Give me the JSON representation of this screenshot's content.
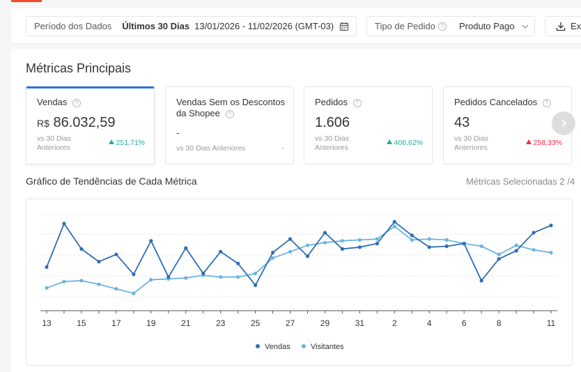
{
  "filter": {
    "period_label": "Período dos Dados",
    "period_range": "Últimos 30 Dias",
    "period_dates": "13/01/2026 - 11/02/2026 (GMT-03)",
    "order_type_label": "Tipo de Pedido",
    "order_type_value": "Produto Pago",
    "export_label": "Exp"
  },
  "metrics_section": {
    "title": "Métricas Principais",
    "cards": [
      {
        "name": "Vendas",
        "currency": "R$",
        "value": "86.032,59",
        "compare": "vs 30 Dias Anteriores",
        "change": "251,71%",
        "direction": "up",
        "color": "#26aa99"
      },
      {
        "name": "Vendas Sem os Descontos da Shopee",
        "value": "-",
        "compare": "vs 30 Dias Anteriores",
        "change": "-"
      },
      {
        "name": "Pedidos",
        "value": "1.606",
        "compare": "vs 30 Dias Anteriores",
        "change": "406,62%",
        "direction": "up",
        "color": "#26aa99"
      },
      {
        "name": "Pedidos Cancelados",
        "value": "43",
        "compare": "vs 30 Dias Anteriores",
        "change": "258,33%",
        "direction": "up",
        "color": "#ee2c4a"
      }
    ]
  },
  "trend": {
    "title": "Gráfico de Tendências de Cada Métrica",
    "selected": "Métricas Selecionadas 2 /4"
  },
  "chart_data": {
    "type": "line",
    "x": [
      "13",
      "14",
      "15",
      "16",
      "17",
      "18",
      "19",
      "20",
      "21",
      "22",
      "23",
      "24",
      "25",
      "26",
      "27",
      "28",
      "29",
      "30",
      "31",
      "1",
      "2",
      "3",
      "4",
      "5",
      "6",
      "7",
      "8",
      "9",
      "10",
      "11"
    ],
    "tick_labels": [
      "13",
      "15",
      "17",
      "19",
      "21",
      "23",
      "25",
      "27",
      "29",
      "31",
      "2",
      "4",
      "6",
      "8",
      "11"
    ],
    "ylim": [
      0,
      100
    ],
    "grid": true,
    "legend": "bottom",
    "series": [
      {
        "name": "Vendas",
        "color": "#2d6db5",
        "values": [
          42,
          90,
          62,
          48,
          56,
          34,
          71,
          31,
          63,
          35,
          59,
          46,
          22,
          58,
          73,
          54,
          80,
          62,
          64,
          68,
          92,
          77,
          64,
          65,
          68,
          27,
          51,
          60,
          80,
          88
        ]
      },
      {
        "name": "Visitantes",
        "color": "#6ab4e0",
        "values": [
          19,
          26,
          27,
          23,
          18,
          13,
          28,
          29,
          30,
          33,
          31,
          31,
          35,
          52,
          59,
          66,
          69,
          71,
          72,
          73,
          87,
          72,
          73,
          72,
          68,
          65,
          56,
          66,
          61,
          58
        ]
      }
    ]
  }
}
